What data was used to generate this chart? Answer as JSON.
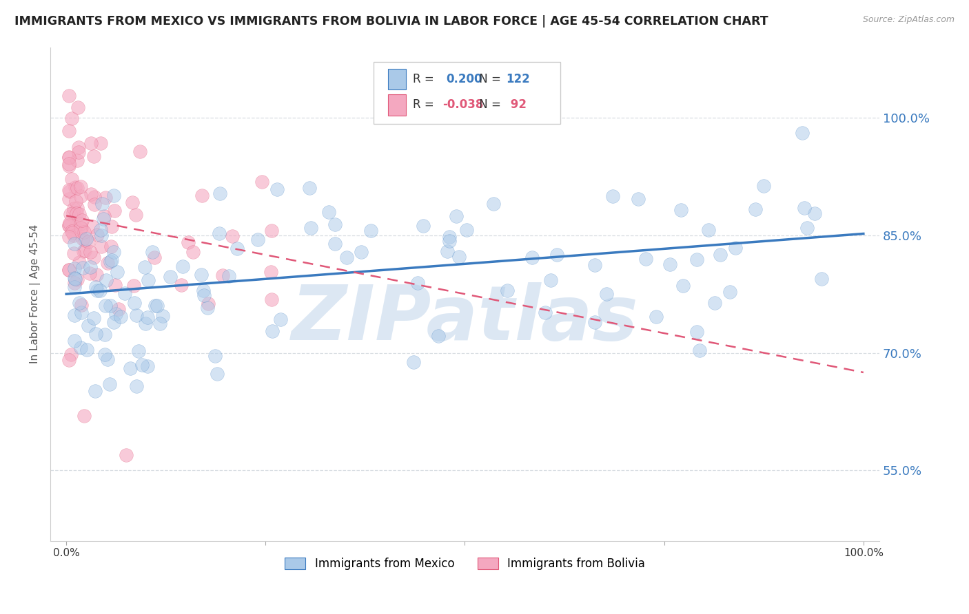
{
  "title": "IMMIGRANTS FROM MEXICO VS IMMIGRANTS FROM BOLIVIA IN LABOR FORCE | AGE 45-54 CORRELATION CHART",
  "source": "Source: ZipAtlas.com",
  "ylabel": "In Labor Force | Age 45-54",
  "legend_labels": [
    "Immigrants from Mexico",
    "Immigrants from Bolivia"
  ],
  "r_mexico": 0.2,
  "n_mexico": 122,
  "r_bolivia": -0.038,
  "n_bolivia": 92,
  "color_mexico": "#aac9e8",
  "color_bolivia": "#f4a8c0",
  "line_color_mexico": "#3a7abf",
  "line_color_bolivia": "#e05878",
  "watermark": "ZIPatlas",
  "watermark_color": "#c5d8ec",
  "ytick_vals": [
    0.55,
    0.7,
    0.85,
    1.0
  ],
  "ytick_labels": [
    "55.0%",
    "70.0%",
    "85.0%",
    "100.0%"
  ],
  "grid_ytick_vals": [
    0.55,
    0.7,
    0.85,
    1.0
  ],
  "ylim": [
    0.46,
    1.09
  ],
  "xlim": [
    -0.02,
    1.02
  ],
  "blue_line_start_y": 0.775,
  "blue_line_end_y": 0.852,
  "pink_line_start_y": 0.875,
  "pink_line_end_y": 0.675,
  "grid_color": "#d8dde2",
  "background_color": "#ffffff",
  "title_fontsize": 12.5,
  "axis_label_fontsize": 11,
  "tick_label_color": "#3a7abf",
  "legend_r_color_mexico": "#3a7abf",
  "legend_r_color_bolivia": "#e05878"
}
